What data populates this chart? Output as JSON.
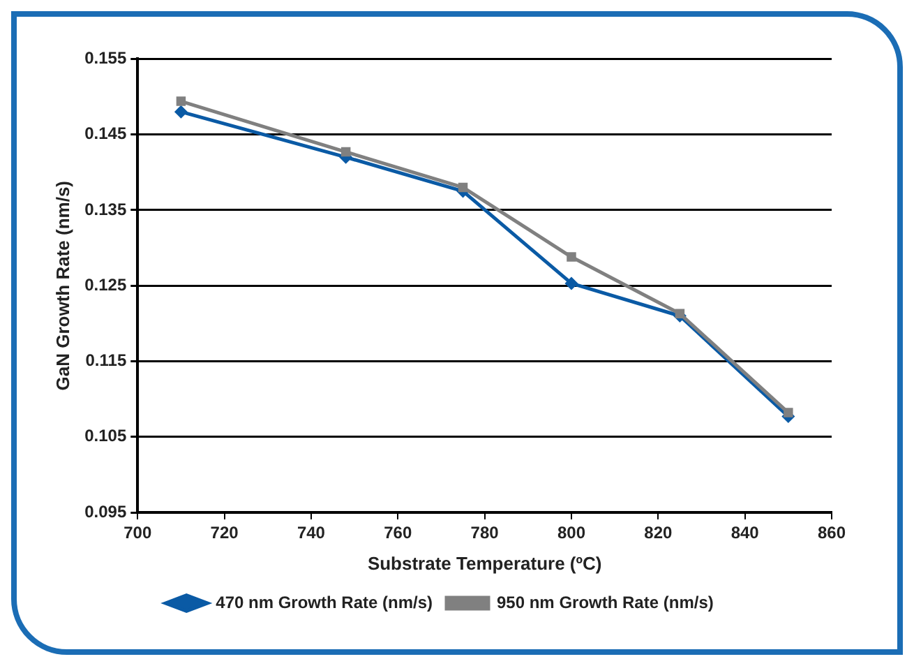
{
  "chart_data": {
    "type": "line",
    "xlabel": "Substrate Temperature (ºC)",
    "ylabel": "GaN Growth Rate (nm/s)",
    "x": [
      710,
      748,
      775,
      800,
      825,
      850
    ],
    "series": [
      {
        "name": "470 nm Growth Rate (nm/s)",
        "color": "#0a5aa5",
        "marker": "diamond",
        "values": [
          0.148,
          0.142,
          0.1375,
          0.1253,
          0.121,
          0.1077
        ]
      },
      {
        "name": "950 nm Growth Rate (nm/s)",
        "color": "#808080",
        "marker": "square",
        "values": [
          0.1494,
          0.1427,
          0.138,
          0.1288,
          0.1213,
          0.1082
        ]
      }
    ],
    "xlim": [
      700,
      860
    ],
    "xticks": [
      700,
      720,
      740,
      760,
      780,
      800,
      820,
      840,
      860
    ],
    "ylim": [
      0.095,
      0.155
    ],
    "yticks": [
      0.095,
      0.105,
      0.115,
      0.125,
      0.135,
      0.145,
      0.155
    ],
    "grid": "y",
    "legend": "bottom",
    "line_style": "solid"
  }
}
